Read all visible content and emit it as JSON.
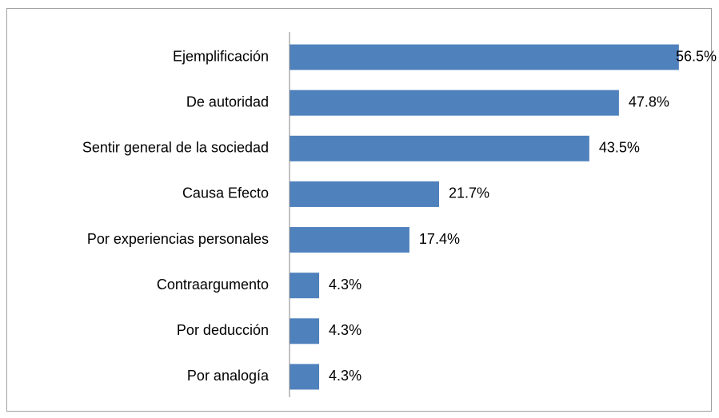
{
  "chart_data": {
    "type": "barh",
    "categories": [
      "Ejemplificación",
      "De autoridad",
      "Sentir general de la sociedad",
      "Causa Efecto",
      "Por experiencias personales",
      "Contraargumento",
      "Por deducción",
      "Por analogía"
    ],
    "values": [
      56.5,
      47.8,
      43.5,
      21.7,
      17.4,
      4.3,
      4.3,
      4.3
    ],
    "value_labels": [
      "56.5%",
      "47.8%",
      "43.5%",
      "21.7%",
      "17.4%",
      "4.3%",
      "4.3%",
      "4.3%"
    ],
    "color": "#4f81bd",
    "xlim": [
      0,
      60
    ]
  }
}
